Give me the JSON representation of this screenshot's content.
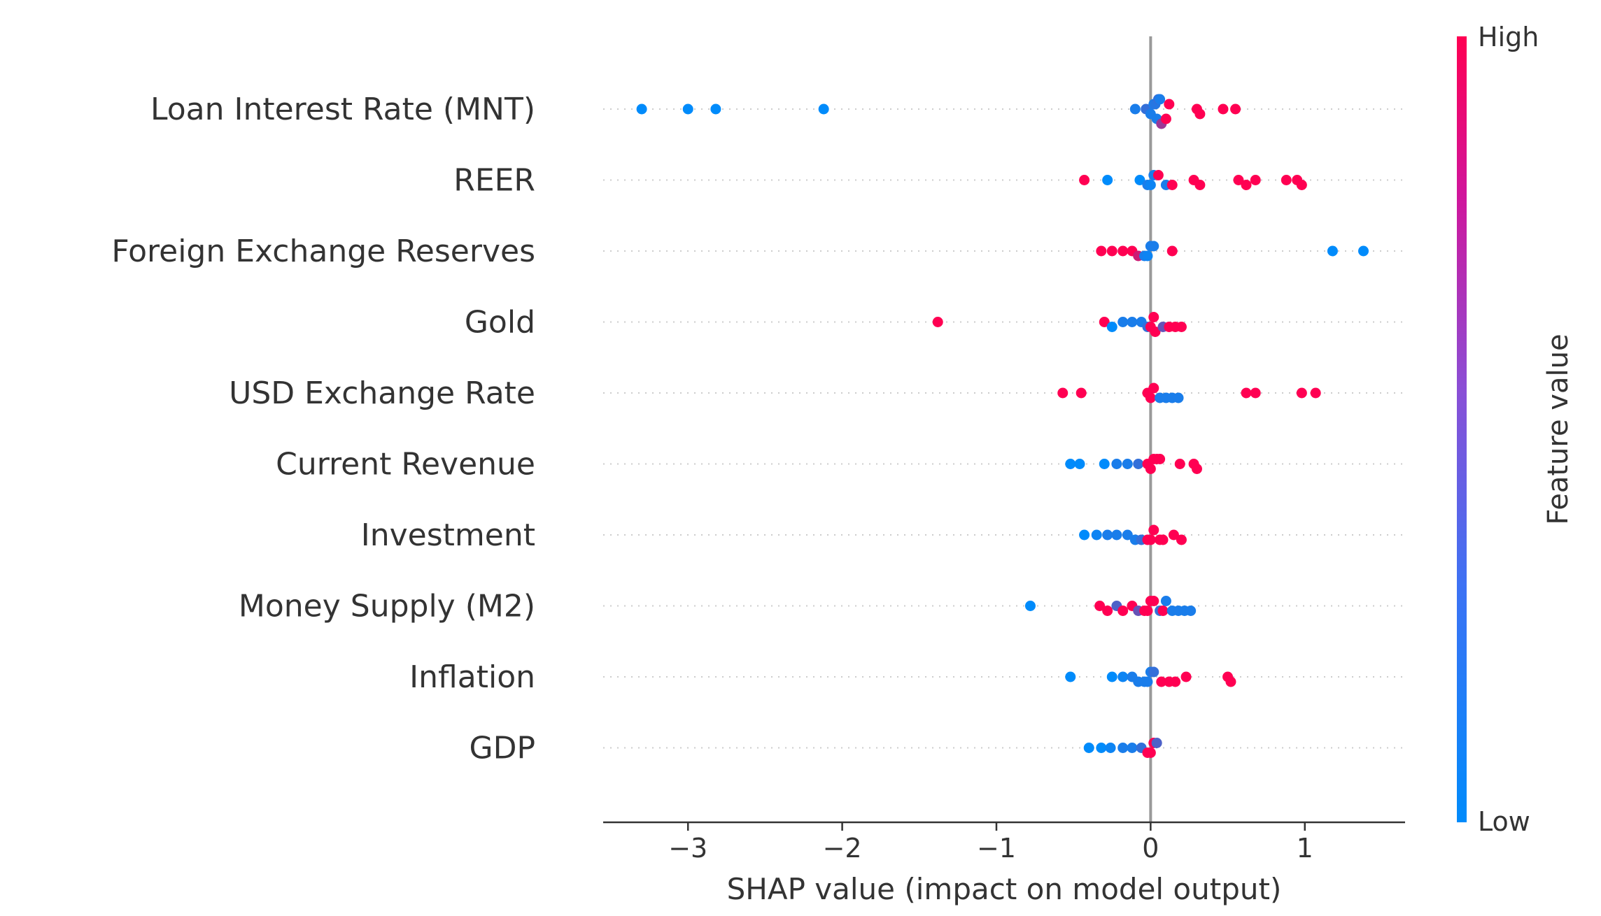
{
  "chart_data": {
    "type": "scatter",
    "subtype": "shap-beeswarm",
    "title": "",
    "xlabel": "SHAP value (impact on model output)",
    "xlim": [
      -3.55,
      1.65
    ],
    "xticks": [
      -3,
      -2,
      -1,
      0,
      1
    ],
    "xtick_labels": [
      "−3",
      "−2",
      "−1",
      "0",
      "1"
    ],
    "colorbar": {
      "label": "Feature value",
      "high_label": "High",
      "low_label": "Low",
      "high_color": "#ff0052",
      "low_color": "#008bfb"
    },
    "features": [
      {
        "name": "Loan Interest Rate (MNT)",
        "points": [
          {
            "x": -3.3,
            "v": 0
          },
          {
            "x": -3.0,
            "v": 0
          },
          {
            "x": -2.82,
            "v": 0
          },
          {
            "x": -2.12,
            "v": 0
          },
          {
            "x": -0.1,
            "v": 0.1
          },
          {
            "x": -0.03,
            "v": 0.2
          },
          {
            "x": 0.0,
            "v": 0.1
          },
          {
            "x": 0.02,
            "v": 0.1
          },
          {
            "x": 0.03,
            "v": 0.15
          },
          {
            "x": 0.04,
            "v": 0.1
          },
          {
            "x": 0.05,
            "v": 0.2
          },
          {
            "x": 0.06,
            "v": 0.1
          },
          {
            "x": 0.07,
            "v": 0.6
          },
          {
            "x": 0.1,
            "v": 1
          },
          {
            "x": 0.12,
            "v": 1
          },
          {
            "x": 0.3,
            "v": 1
          },
          {
            "x": 0.32,
            "v": 1
          },
          {
            "x": 0.47,
            "v": 1
          },
          {
            "x": 0.55,
            "v": 1
          }
        ]
      },
      {
        "name": "REER",
        "points": [
          {
            "x": -0.43,
            "v": 1
          },
          {
            "x": -0.28,
            "v": 0
          },
          {
            "x": -0.07,
            "v": 0
          },
          {
            "x": -0.02,
            "v": 0.1
          },
          {
            "x": 0.0,
            "v": 0.05
          },
          {
            "x": 0.02,
            "v": 0.1
          },
          {
            "x": 0.05,
            "v": 1
          },
          {
            "x": 0.1,
            "v": 0.1
          },
          {
            "x": 0.14,
            "v": 1
          },
          {
            "x": 0.28,
            "v": 1
          },
          {
            "x": 0.32,
            "v": 1
          },
          {
            "x": 0.57,
            "v": 1
          },
          {
            "x": 0.62,
            "v": 1
          },
          {
            "x": 0.68,
            "v": 1
          },
          {
            "x": 0.88,
            "v": 1
          },
          {
            "x": 0.95,
            "v": 1
          },
          {
            "x": 0.98,
            "v": 1
          }
        ]
      },
      {
        "name": "Foreign Exchange Reserves",
        "points": [
          {
            "x": -0.32,
            "v": 1
          },
          {
            "x": -0.25,
            "v": 1
          },
          {
            "x": -0.18,
            "v": 1
          },
          {
            "x": -0.12,
            "v": 1
          },
          {
            "x": -0.08,
            "v": 0.8
          },
          {
            "x": -0.04,
            "v": 0.1
          },
          {
            "x": -0.02,
            "v": 0.05
          },
          {
            "x": 0.0,
            "v": 0.1
          },
          {
            "x": 0.02,
            "v": 0.1
          },
          {
            "x": 0.14,
            "v": 1
          },
          {
            "x": 1.18,
            "v": 0
          },
          {
            "x": 1.38,
            "v": 0
          }
        ]
      },
      {
        "name": "Gold",
        "points": [
          {
            "x": -1.38,
            "v": 1
          },
          {
            "x": -0.3,
            "v": 1
          },
          {
            "x": -0.25,
            "v": 0
          },
          {
            "x": -0.18,
            "v": 0.1
          },
          {
            "x": -0.12,
            "v": 0.1
          },
          {
            "x": -0.06,
            "v": 0.1
          },
          {
            "x": -0.02,
            "v": 0.2
          },
          {
            "x": 0.0,
            "v": 1
          },
          {
            "x": 0.02,
            "v": 1
          },
          {
            "x": 0.03,
            "v": 1
          },
          {
            "x": 0.08,
            "v": 0.4
          },
          {
            "x": 0.12,
            "v": 1
          },
          {
            "x": 0.16,
            "v": 1
          },
          {
            "x": 0.2,
            "v": 1
          }
        ]
      },
      {
        "name": "USD Exchange Rate",
        "points": [
          {
            "x": -0.57,
            "v": 1
          },
          {
            "x": -0.45,
            "v": 1
          },
          {
            "x": -0.02,
            "v": 1
          },
          {
            "x": 0.0,
            "v": 1
          },
          {
            "x": 0.02,
            "v": 1
          },
          {
            "x": 0.06,
            "v": 0.1
          },
          {
            "x": 0.1,
            "v": 0.1
          },
          {
            "x": 0.14,
            "v": 0.1
          },
          {
            "x": 0.18,
            "v": 0.1
          },
          {
            "x": 0.62,
            "v": 1
          },
          {
            "x": 0.68,
            "v": 1
          },
          {
            "x": 0.98,
            "v": 1
          },
          {
            "x": 1.07,
            "v": 1
          }
        ]
      },
      {
        "name": "Current Revenue",
        "points": [
          {
            "x": -0.52,
            "v": 0
          },
          {
            "x": -0.46,
            "v": 0
          },
          {
            "x": -0.3,
            "v": 0
          },
          {
            "x": -0.22,
            "v": 0.1
          },
          {
            "x": -0.15,
            "v": 0.1
          },
          {
            "x": -0.08,
            "v": 0.2
          },
          {
            "x": -0.02,
            "v": 1
          },
          {
            "x": 0.0,
            "v": 1
          },
          {
            "x": 0.02,
            "v": 1
          },
          {
            "x": 0.04,
            "v": 1
          },
          {
            "x": 0.06,
            "v": 1
          },
          {
            "x": 0.19,
            "v": 1
          },
          {
            "x": 0.28,
            "v": 1
          },
          {
            "x": 0.3,
            "v": 1
          }
        ]
      },
      {
        "name": "Investment",
        "points": [
          {
            "x": -0.43,
            "v": 0
          },
          {
            "x": -0.35,
            "v": 0.05
          },
          {
            "x": -0.28,
            "v": 0.1
          },
          {
            "x": -0.22,
            "v": 0.1
          },
          {
            "x": -0.15,
            "v": 0.1
          },
          {
            "x": -0.1,
            "v": 0.1
          },
          {
            "x": -0.06,
            "v": 0.2
          },
          {
            "x": -0.02,
            "v": 1
          },
          {
            "x": 0.0,
            "v": 1
          },
          {
            "x": 0.02,
            "v": 1
          },
          {
            "x": 0.06,
            "v": 1
          },
          {
            "x": 0.08,
            "v": 1
          },
          {
            "x": 0.15,
            "v": 1
          },
          {
            "x": 0.2,
            "v": 1
          }
        ]
      },
      {
        "name": "Money Supply (M2)",
        "points": [
          {
            "x": -0.78,
            "v": 0
          },
          {
            "x": -0.33,
            "v": 1
          },
          {
            "x": -0.28,
            "v": 1
          },
          {
            "x": -0.22,
            "v": 0.3
          },
          {
            "x": -0.18,
            "v": 1
          },
          {
            "x": -0.12,
            "v": 1
          },
          {
            "x": -0.08,
            "v": 0.4
          },
          {
            "x": -0.04,
            "v": 1
          },
          {
            "x": -0.02,
            "v": 1
          },
          {
            "x": 0.0,
            "v": 1
          },
          {
            "x": 0.02,
            "v": 1
          },
          {
            "x": 0.06,
            "v": 0.2
          },
          {
            "x": 0.08,
            "v": 1
          },
          {
            "x": 0.1,
            "v": 0.1
          },
          {
            "x": 0.14,
            "v": 0.1
          },
          {
            "x": 0.18,
            "v": 0.1
          },
          {
            "x": 0.22,
            "v": 0.1
          },
          {
            "x": 0.26,
            "v": 0.1
          }
        ]
      },
      {
        "name": "Inflation",
        "points": [
          {
            "x": -0.52,
            "v": 0
          },
          {
            "x": -0.25,
            "v": 0
          },
          {
            "x": -0.18,
            "v": 0.05
          },
          {
            "x": -0.12,
            "v": 0.1
          },
          {
            "x": -0.08,
            "v": 0.1
          },
          {
            "x": -0.04,
            "v": 0.1
          },
          {
            "x": -0.02,
            "v": 0.1
          },
          {
            "x": 0.0,
            "v": 0.1
          },
          {
            "x": 0.02,
            "v": 0.2
          },
          {
            "x": 0.07,
            "v": 1
          },
          {
            "x": 0.12,
            "v": 1
          },
          {
            "x": 0.16,
            "v": 1
          },
          {
            "x": 0.23,
            "v": 1
          },
          {
            "x": 0.5,
            "v": 1
          },
          {
            "x": 0.52,
            "v": 1
          }
        ]
      },
      {
        "name": "GDP",
        "points": [
          {
            "x": -0.4,
            "v": 0
          },
          {
            "x": -0.32,
            "v": 0
          },
          {
            "x": -0.26,
            "v": 0.05
          },
          {
            "x": -0.18,
            "v": 0.1
          },
          {
            "x": -0.12,
            "v": 0.1
          },
          {
            "x": -0.06,
            "v": 0.2
          },
          {
            "x": -0.02,
            "v": 1
          },
          {
            "x": 0.0,
            "v": 1
          },
          {
            "x": 0.02,
            "v": 1
          },
          {
            "x": 0.04,
            "v": 0.3
          }
        ]
      }
    ]
  }
}
